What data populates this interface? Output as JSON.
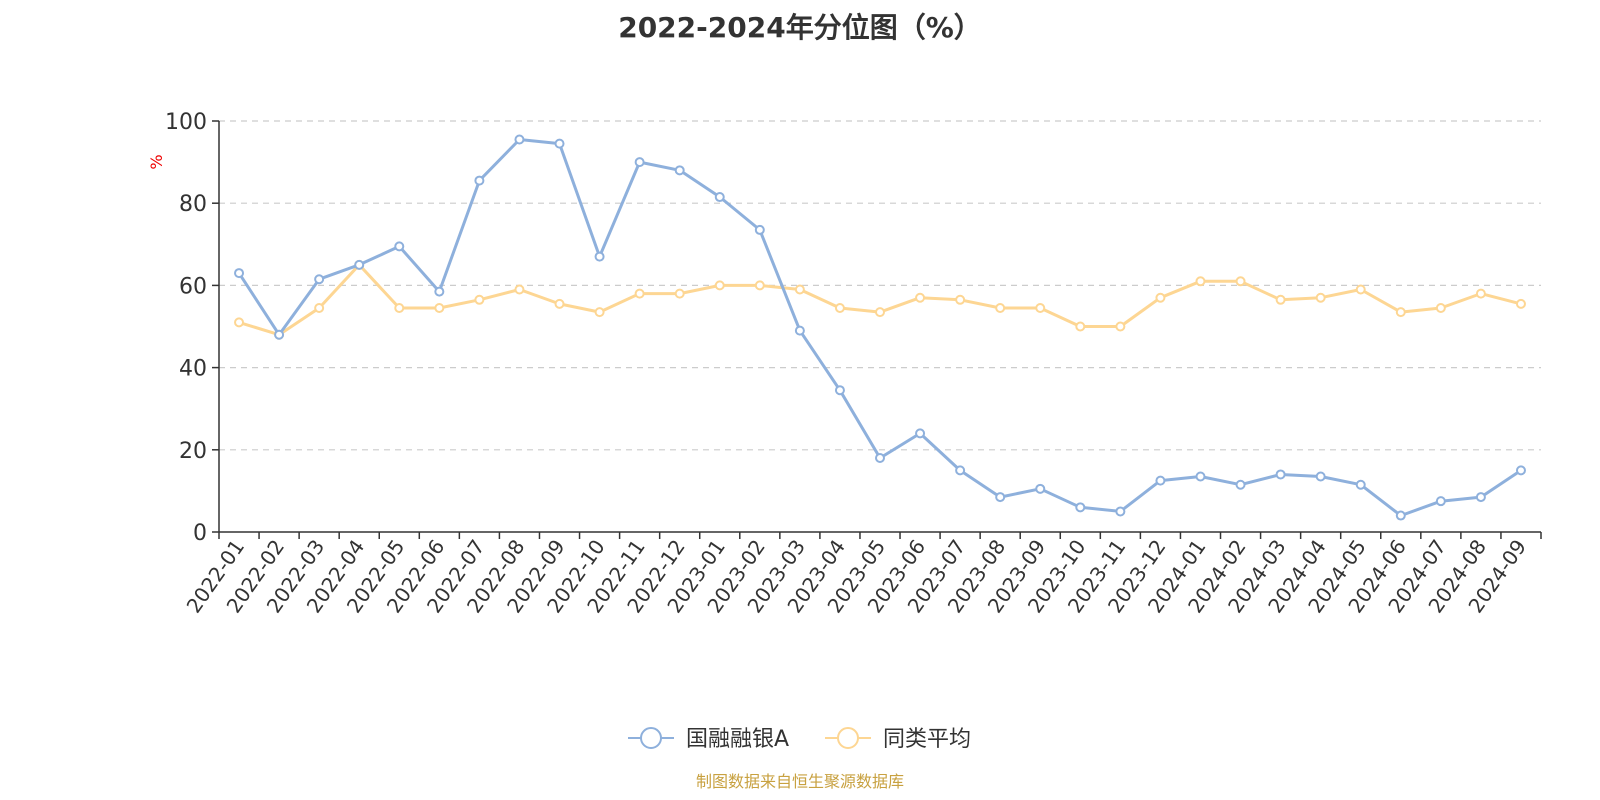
{
  "chart_data": {
    "type": "line",
    "title": "2022-2024年分位图（%）",
    "ylabel": "%",
    "xlabel": "",
    "ylim": [
      0,
      100
    ],
    "yticks": [
      0,
      20,
      40,
      60,
      80,
      100
    ],
    "grid": true,
    "legend_position": "bottom",
    "categories": [
      "2022-01",
      "2022-02",
      "2022-03",
      "2022-04",
      "2022-05",
      "2022-06",
      "2022-07",
      "2022-08",
      "2022-09",
      "2022-10",
      "2022-11",
      "2022-12",
      "2023-01",
      "2023-02",
      "2023-03",
      "2023-04",
      "2023-05",
      "2023-06",
      "2023-07",
      "2023-08",
      "2023-09",
      "2023-10",
      "2023-11",
      "2023-12",
      "2024-01",
      "2024-02",
      "2024-03",
      "2024-04",
      "2024-05",
      "2024-06",
      "2024-07",
      "2024-08",
      "2024-09"
    ],
    "series": [
      {
        "name": "国融融银A",
        "color": "#8eb0dc",
        "values": [
          63,
          48,
          61.5,
          65,
          69.5,
          58.5,
          85.5,
          95.5,
          94.5,
          67,
          90,
          88,
          81.5,
          73.5,
          49,
          34.5,
          18,
          24,
          15,
          8.5,
          10.5,
          6,
          5,
          12.5,
          13.5,
          11.5,
          14,
          13.5,
          11.5,
          4,
          7.5,
          8.5,
          15
        ]
      },
      {
        "name": "同类平均",
        "color": "#fdd693",
        "values": [
          51,
          48,
          54.5,
          65,
          54.5,
          54.5,
          56.5,
          59,
          55.5,
          53.5,
          58,
          58,
          60,
          60,
          59,
          54.5,
          53.5,
          57,
          56.5,
          54.5,
          54.5,
          50,
          50,
          57,
          61,
          61,
          56.5,
          57,
          59,
          53.5,
          54.5,
          58,
          55.5
        ]
      }
    ]
  },
  "footer": {
    "source": "制图数据来自恒生聚源数据库",
    "color": "#c8a140"
  },
  "colors": {
    "axis": "#333333",
    "grid": "#cccccc",
    "ylabel": "#ee0000",
    "text": "#333333"
  }
}
